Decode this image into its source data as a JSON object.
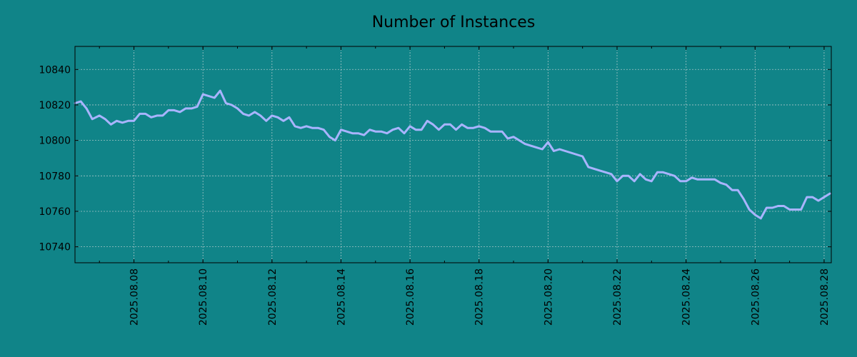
{
  "chart_data": {
    "type": "line",
    "title": "Number of Instances",
    "xlabel": "",
    "ylabel": "",
    "grid": true,
    "ylim": [
      10731,
      10853
    ],
    "xlim": [
      "2025-08-06 07:00",
      "2025-08-28 05:00"
    ],
    "colors": {
      "background": "#108488",
      "line": "#a9b4ff",
      "grid": "#c9d6d6"
    },
    "y_ticks": [
      "10740",
      "10760",
      "10780",
      "10800",
      "10820",
      "10840"
    ],
    "x_ticks": [
      "2025.08.08",
      "2025.08.10",
      "2025.08.12",
      "2025.08.14",
      "2025.08.16",
      "2025.08.18",
      "2025.08.20",
      "2025.08.22",
      "2025.08.24",
      "2025.08.26",
      "2025.08.28"
    ],
    "series": [
      {
        "x": [
          "2025-08-06 07:00",
          "2025-08-06 11:00",
          "2025-08-06 15:00",
          "2025-08-06 19:00",
          "2025-08-07 00:00",
          "2025-08-07 04:00",
          "2025-08-07 08:00",
          "2025-08-07 12:00",
          "2025-08-07 16:00",
          "2025-08-07 20:00",
          "2025-08-08 00:00",
          "2025-08-08 04:00",
          "2025-08-08 08:00",
          "2025-08-08 12:00",
          "2025-08-08 16:00",
          "2025-08-08 20:00",
          "2025-08-09 00:00",
          "2025-08-09 04:00",
          "2025-08-09 08:00",
          "2025-08-09 12:00",
          "2025-08-09 16:00",
          "2025-08-09 20:00",
          "2025-08-10 00:00",
          "2025-08-10 04:00",
          "2025-08-10 08:00",
          "2025-08-10 12:00",
          "2025-08-10 16:00",
          "2025-08-10 20:00",
          "2025-08-11 00:00",
          "2025-08-11 04:00",
          "2025-08-11 08:00",
          "2025-08-11 12:00",
          "2025-08-11 16:00",
          "2025-08-11 20:00",
          "2025-08-12 00:00",
          "2025-08-12 04:00",
          "2025-08-12 08:00",
          "2025-08-12 12:00",
          "2025-08-12 16:00",
          "2025-08-12 20:00",
          "2025-08-13 00:00",
          "2025-08-13 04:00",
          "2025-08-13 08:00",
          "2025-08-13 12:00",
          "2025-08-13 16:00",
          "2025-08-13 20:00",
          "2025-08-14 00:00",
          "2025-08-14 04:00",
          "2025-08-14 08:00",
          "2025-08-14 12:00",
          "2025-08-14 16:00",
          "2025-08-14 20:00",
          "2025-08-15 00:00",
          "2025-08-15 04:00",
          "2025-08-15 08:00",
          "2025-08-15 12:00",
          "2025-08-15 16:00",
          "2025-08-15 20:00",
          "2025-08-16 00:00",
          "2025-08-16 04:00",
          "2025-08-16 08:00",
          "2025-08-16 12:00",
          "2025-08-16 16:00",
          "2025-08-16 20:00",
          "2025-08-17 00:00",
          "2025-08-17 04:00",
          "2025-08-17 08:00",
          "2025-08-17 12:00",
          "2025-08-17 16:00",
          "2025-08-17 20:00",
          "2025-08-18 00:00",
          "2025-08-18 04:00",
          "2025-08-18 08:00",
          "2025-08-18 12:00",
          "2025-08-18 16:00",
          "2025-08-18 20:00",
          "2025-08-19 00:00",
          "2025-08-19 04:00",
          "2025-08-19 08:00",
          "2025-08-19 12:00",
          "2025-08-19 16:00",
          "2025-08-19 20:00",
          "2025-08-20 00:00",
          "2025-08-20 04:00",
          "2025-08-20 08:00",
          "2025-08-20 12:00",
          "2025-08-20 16:00",
          "2025-08-20 20:00",
          "2025-08-21 00:00",
          "2025-08-21 04:00",
          "2025-08-21 08:00",
          "2025-08-21 12:00",
          "2025-08-21 16:00",
          "2025-08-21 20:00",
          "2025-08-22 00:00",
          "2025-08-22 04:00",
          "2025-08-22 08:00",
          "2025-08-22 12:00",
          "2025-08-22 16:00",
          "2025-08-22 20:00",
          "2025-08-23 00:00",
          "2025-08-23 04:00",
          "2025-08-23 08:00",
          "2025-08-23 12:00",
          "2025-08-23 16:00",
          "2025-08-23 20:00",
          "2025-08-24 00:00",
          "2025-08-24 04:00",
          "2025-08-24 08:00",
          "2025-08-24 12:00",
          "2025-08-24 16:00",
          "2025-08-24 20:00",
          "2025-08-25 00:00",
          "2025-08-25 04:00",
          "2025-08-25 08:00",
          "2025-08-25 12:00",
          "2025-08-25 16:00",
          "2025-08-25 20:00",
          "2025-08-26 00:00",
          "2025-08-26 04:00",
          "2025-08-26 08:00",
          "2025-08-26 12:00",
          "2025-08-26 16:00",
          "2025-08-26 20:00",
          "2025-08-27 00:00",
          "2025-08-27 04:00",
          "2025-08-27 08:00",
          "2025-08-27 12:00",
          "2025-08-27 16:00",
          "2025-08-27 20:00",
          "2025-08-28 00:00",
          "2025-08-28 04:00"
        ],
        "values": [
          10821,
          10822,
          10818,
          10812,
          10814,
          10812,
          10809,
          10811,
          10810,
          10811,
          10811,
          10815,
          10815,
          10813,
          10814,
          10814,
          10817,
          10817,
          10816,
          10818,
          10818,
          10819,
          10826,
          10825,
          10824,
          10828,
          10821,
          10820,
          10818,
          10815,
          10814,
          10816,
          10814,
          10811,
          10814,
          10813,
          10811,
          10813,
          10808,
          10807,
          10808,
          10807,
          10807,
          10806,
          10802,
          10800,
          10806,
          10805,
          10804,
          10804,
          10803,
          10806,
          10805,
          10805,
          10804,
          10806,
          10807,
          10804,
          10808,
          10806,
          10806,
          10811,
          10809,
          10806,
          10809,
          10809,
          10806,
          10809,
          10807,
          10807,
          10808,
          10807,
          10805,
          10805,
          10805,
          10801,
          10802,
          10800,
          10798,
          10797,
          10796,
          10795,
          10799,
          10794,
          10795,
          10794,
          10793,
          10792,
          10791,
          10785,
          10784,
          10783,
          10782,
          10781,
          10777,
          10780,
          10780,
          10777,
          10781,
          10778,
          10777,
          10782,
          10782,
          10781,
          10780,
          10777,
          10777,
          10779,
          10778,
          10778,
          10778,
          10778,
          10776,
          10775,
          10772,
          10772,
          10767,
          10761,
          10758,
          10756,
          10762,
          10762,
          10763,
          10763,
          10761,
          10761,
          10761,
          10768,
          10768,
          10766,
          10768,
          10770
        ]
      }
    ]
  }
}
